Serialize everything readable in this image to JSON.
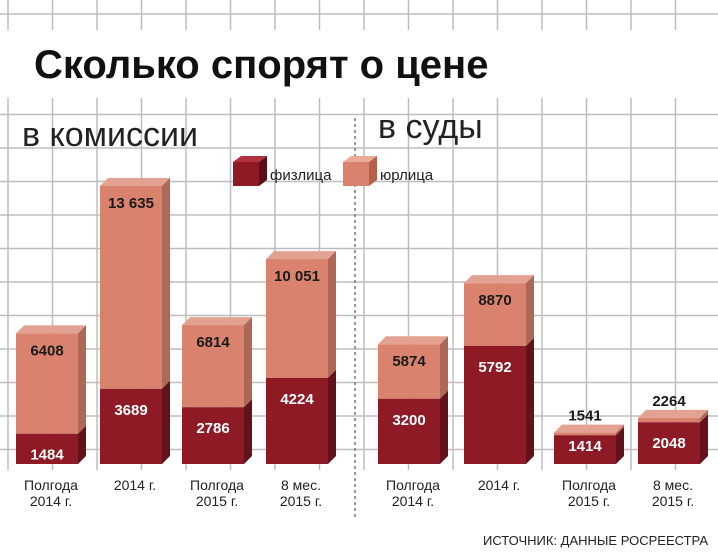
{
  "title": "Сколько спорят о цене",
  "source": "ИСТОЧНИК: ДАННЫЕ РОСРЕЕСТРА",
  "colors": {
    "physical": "#8e1a26",
    "legal": "#d9826e",
    "grid": "#bdbdbd",
    "background": "#ffffff"
  },
  "chart_data": [
    {
      "type": "bar",
      "stacked": true,
      "panel_label": "в комиссии",
      "categories": [
        "Полгода 2014 г.",
        "2014 г.",
        "Полгода 2015 г.",
        "8 мес. 2015 г."
      ],
      "series": [
        {
          "name": "физлица",
          "values": [
            1484,
            3689,
            2786,
            4224
          ]
        },
        {
          "name": "юрлица",
          "values": [
            6408,
            13635,
            6814,
            10051
          ]
        }
      ],
      "value_labels": {
        "физлица": [
          "1484",
          "3689",
          "2786",
          "4224"
        ],
        "юрлица": [
          "6408",
          "13 635",
          "6814",
          "10 051"
        ]
      }
    },
    {
      "type": "bar",
      "stacked": true,
      "panel_label": "в суды",
      "categories": [
        "Полгода 2014 г.",
        "2014 г.",
        "Полгода 2015 г.",
        "8 мес. 2015 г."
      ],
      "series": [
        {
          "name": "физлица",
          "values": [
            3200,
            5792,
            1414,
            2048
          ]
        },
        {
          "name": "юрлица",
          "values": [
            5874,
            8870,
            1541,
            2264
          ]
        }
      ],
      "value_labels": {
        "физлица": [
          "3200",
          "5792",
          "1414",
          "2048"
        ],
        "юрлица": [
          "5874",
          "8870",
          "1541",
          "2264"
        ]
      }
    }
  ],
  "legend": [
    {
      "label": "физлица",
      "color": "#8e1a26"
    },
    {
      "label": "юрлица",
      "color": "#d9826e"
    }
  ]
}
